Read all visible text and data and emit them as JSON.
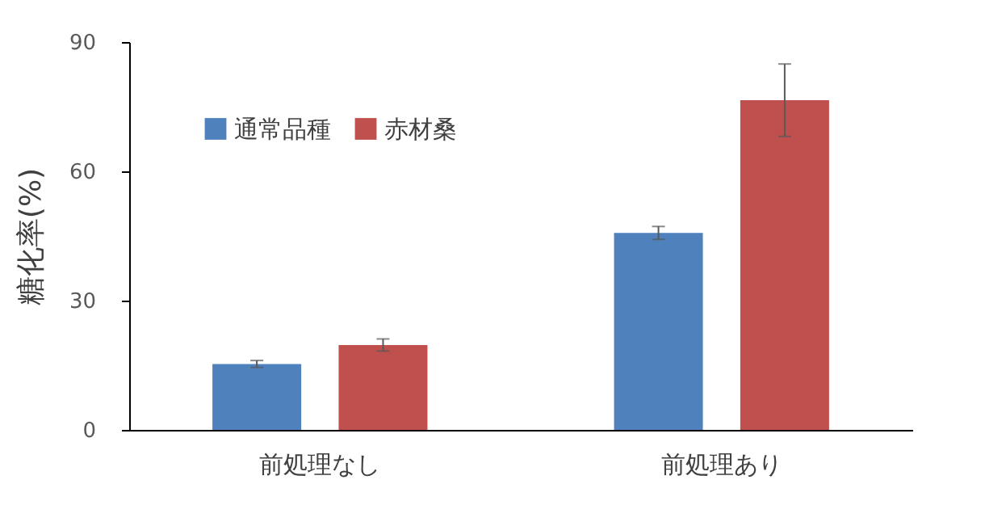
{
  "chart_data": {
    "type": "bar",
    "ylabel": "糖化率(%)",
    "categories": [
      "前処理なし",
      "前処理あり"
    ],
    "series": [
      {
        "name": "通常品種",
        "color": "#4f81bd",
        "values": [
          15.3,
          45.7
        ],
        "errors": [
          0.8,
          1.5
        ]
      },
      {
        "name": "赤材桑",
        "color": "#c0504d",
        "values": [
          19.7,
          76.5
        ],
        "errors": [
          1.4,
          8.4
        ]
      }
    ],
    "ylim": [
      0,
      90
    ],
    "yticks": [
      0,
      30,
      60,
      90
    ],
    "grid": false,
    "legend": "top left"
  }
}
